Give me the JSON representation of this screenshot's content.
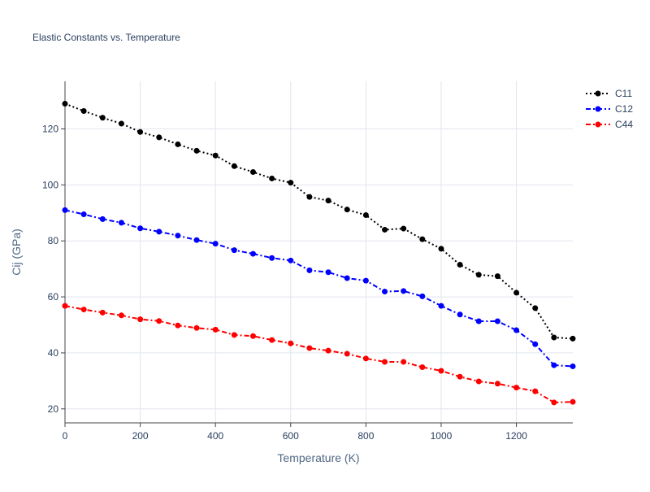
{
  "chart_data": {
    "type": "line",
    "title": "Elastic Constants vs. Temperature",
    "xlabel": "Temperature (K)",
    "ylabel": "Cij (GPa)",
    "xlim": [
      0,
      1350
    ],
    "ylim": [
      15,
      137
    ],
    "xticks": [
      0,
      200,
      400,
      600,
      800,
      1000,
      1200
    ],
    "yticks": [
      20,
      40,
      60,
      80,
      100,
      120
    ],
    "grid": true,
    "legend_position": "top-right",
    "x": [
      0,
      50,
      100,
      150,
      200,
      250,
      300,
      350,
      400,
      450,
      500,
      550,
      600,
      650,
      700,
      750,
      800,
      850,
      900,
      950,
      1000,
      1050,
      1100,
      1150,
      1200,
      1250,
      1300,
      1350
    ],
    "series": [
      {
        "name": "C11",
        "color": "#000000",
        "dash": "dot",
        "values": [
          129.0,
          126.4,
          124.0,
          121.9,
          118.9,
          117.0,
          114.5,
          112.2,
          110.5,
          106.7,
          104.6,
          102.3,
          100.8,
          95.7,
          94.4,
          91.2,
          89.2,
          84.0,
          84.4,
          80.6,
          77.2,
          71.5,
          67.9,
          67.4,
          61.5,
          56.0,
          45.5,
          45.1
        ]
      },
      {
        "name": "C12",
        "color": "#0000ff",
        "dash": "dashdot",
        "values": [
          91.0,
          89.5,
          87.8,
          86.5,
          84.5,
          83.3,
          81.9,
          80.3,
          79.0,
          76.7,
          75.4,
          73.9,
          73.0,
          69.5,
          68.8,
          66.7,
          65.8,
          61.9,
          62.1,
          60.2,
          56.8,
          53.7,
          51.3,
          51.3,
          48.1,
          43.1,
          35.6,
          35.2
        ]
      },
      {
        "name": "C44",
        "color": "#ff0000",
        "dash": "dashdot",
        "values": [
          56.8,
          55.5,
          54.4,
          53.4,
          52.0,
          51.4,
          49.8,
          48.9,
          48.3,
          46.4,
          46.0,
          44.6,
          43.4,
          41.7,
          40.8,
          39.7,
          38.0,
          36.8,
          36.8,
          34.9,
          33.6,
          31.5,
          29.8,
          29.0,
          27.6,
          26.3,
          22.3,
          22.5
        ]
      }
    ]
  }
}
